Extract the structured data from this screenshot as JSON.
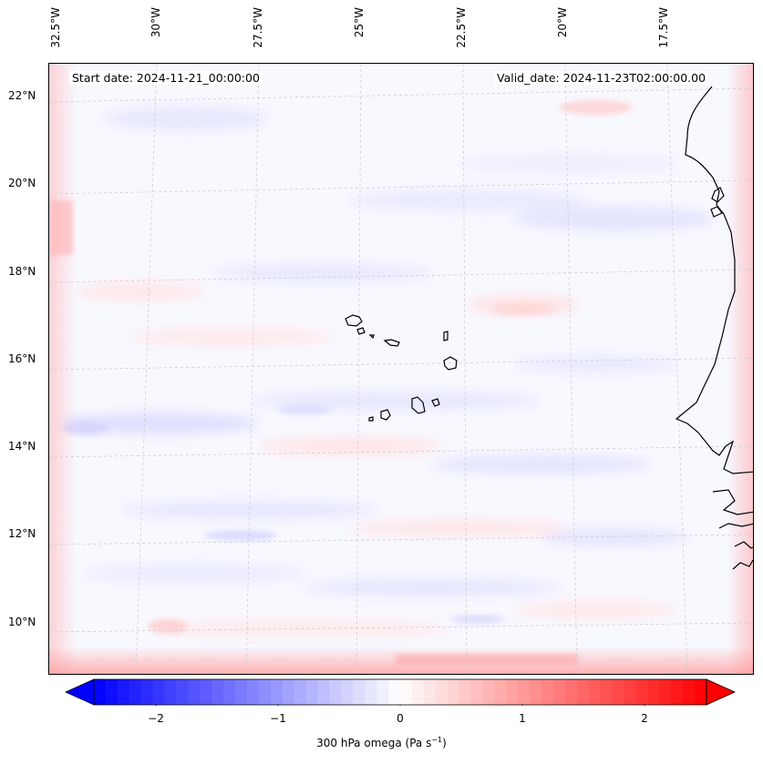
{
  "header": {
    "start_date": "Start date: 2024-11-21_00:00:00",
    "valid_date": "Valid_date: 2024-11-23T02:00:00.00"
  },
  "axes": {
    "longitude_labels": [
      "32.5°W",
      "30°W",
      "27.5°W",
      "25°W",
      "22.5°W",
      "20°W",
      "17.5°W"
    ],
    "latitude_labels": [
      "22°N",
      "20°N",
      "18°N",
      "16°N",
      "14°N",
      "12°N",
      "10°N"
    ]
  },
  "colorbar": {
    "ticks": [
      "−2",
      "−1",
      "0",
      "1",
      "2"
    ],
    "range": [
      -2.6,
      2.6
    ],
    "label_prefix": "300 hPa omega (Pa s",
    "label_exponent": "−1",
    "label_suffix": ")",
    "low_color": "#0000ff",
    "mid_color": "#ffffff",
    "high_color": "#ff0000"
  },
  "map": {
    "field": "300 hPa omega",
    "coastline_color": "#000000",
    "gridline_color": "#c8c8c8"
  }
}
